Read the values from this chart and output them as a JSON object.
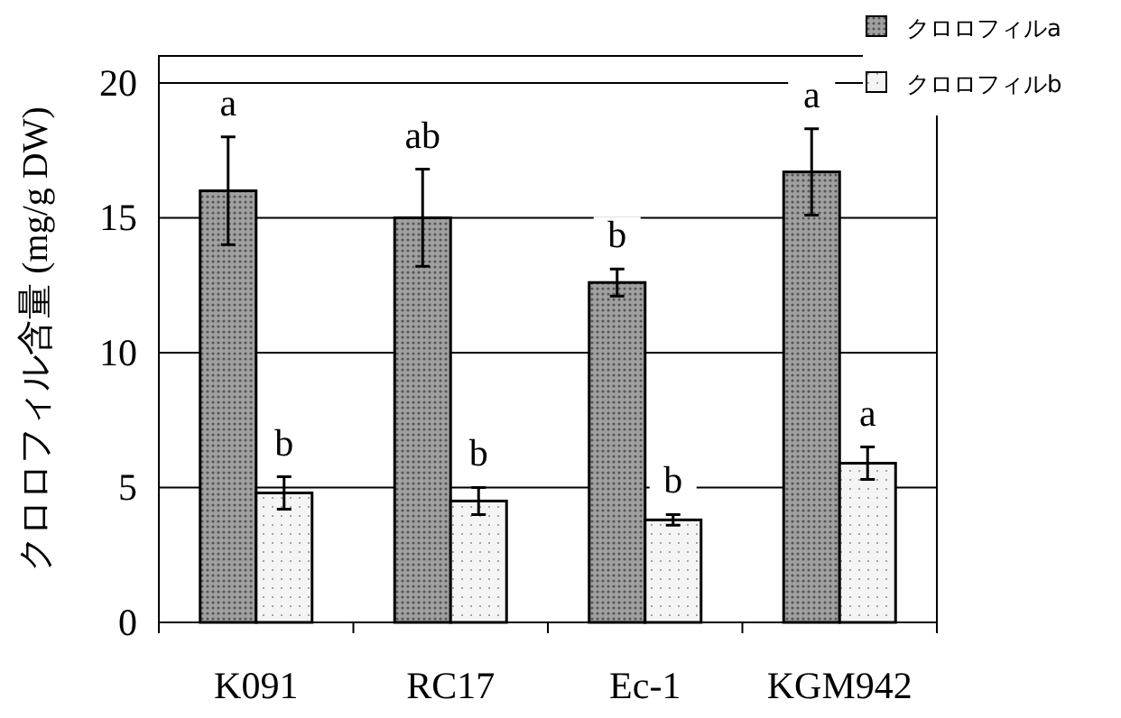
{
  "chart_data": {
    "type": "bar",
    "ylabel": "クロロフィル含量 (mg/g DW)",
    "categories": [
      "K091",
      "RC17",
      "Ec-1",
      "KGM942"
    ],
    "series": [
      {
        "name": "クロロフィルa",
        "color": "#a0a0a0",
        "values": [
          16.0,
          15.0,
          12.6,
          16.7
        ],
        "errors": [
          2.0,
          1.8,
          0.5,
          1.6
        ]
      },
      {
        "name": "クロロフィルb",
        "color": "#f4f4f4",
        "values": [
          4.8,
          4.5,
          3.8,
          5.9
        ],
        "errors": [
          0.6,
          0.5,
          0.2,
          0.6
        ]
      }
    ],
    "ylim": [
      0,
      21
    ],
    "yticks": [
      0,
      5,
      10,
      15,
      20
    ],
    "grid": "y",
    "legend": "top right",
    "annotations": [
      {
        "text": "a",
        "x": "K091",
        "y": 16.0
      },
      {
        "text": "b",
        "x": "K091",
        "y": 4.8
      },
      {
        "text": "ab",
        "x": "RC17",
        "y": 15.0
      },
      {
        "text": "b",
        "x": "RC17",
        "y": 4.5
      },
      {
        "text": "b",
        "x": "Ec-1",
        "y": 12.6
      },
      {
        "text": "b",
        "x": "Ec-1",
        "y": 3.8
      },
      {
        "text": "a",
        "x": "KGM942",
        "y": 16.7
      },
      {
        "text": "a",
        "x": "KGM942",
        "y": 5.9
      }
    ]
  }
}
